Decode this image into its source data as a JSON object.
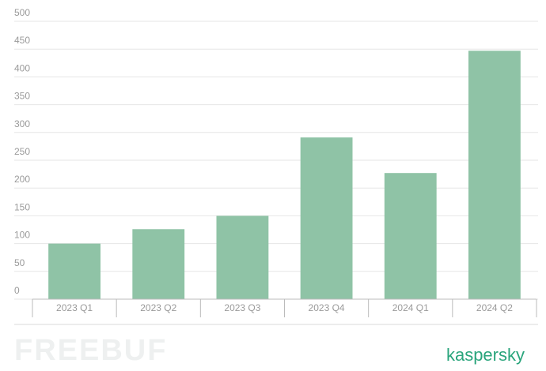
{
  "chart_data": {
    "type": "bar",
    "categories": [
      "2023 Q1",
      "2023 Q2",
      "2023 Q3",
      "2023 Q4",
      "2024 Q1",
      "2024 Q2"
    ],
    "values": [
      100,
      126,
      150,
      291,
      227,
      447
    ],
    "color": "#8fc3a6",
    "ylim": [
      0,
      500
    ],
    "yticks": [
      0,
      50,
      100,
      150,
      200,
      250,
      300,
      350,
      400,
      450,
      500
    ],
    "grid": true,
    "watermark": "FREEBUF",
    "brand": "kaspersky"
  }
}
